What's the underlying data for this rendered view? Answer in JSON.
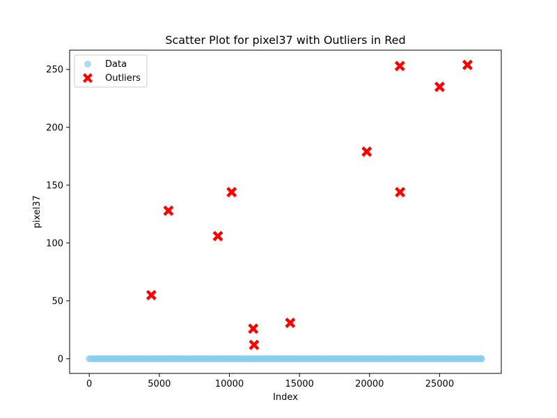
{
  "chart_data": {
    "type": "scatter",
    "title": "Scatter Plot for pixel37 with Outliers in Red",
    "xlabel": "Index",
    "ylabel": "pixel37",
    "xlim": [
      -1400,
      29400
    ],
    "ylim": [
      -12.7,
      266.7
    ],
    "xticks": [
      0,
      5000,
      10000,
      15000,
      20000,
      25000
    ],
    "yticks": [
      0,
      50,
      100,
      150,
      200,
      250
    ],
    "grid": false,
    "legend_position": "top-left",
    "series": [
      {
        "name": "Data",
        "color": "#87ceeb",
        "marker": "circle",
        "baseline": {
          "x_range": [
            0,
            27999
          ],
          "y": 0
        }
      },
      {
        "name": "Outliers",
        "color": "#ff0000",
        "marker": "X",
        "points": [
          {
            "x": 4430,
            "y": 55
          },
          {
            "x": 5650,
            "y": 128
          },
          {
            "x": 9180,
            "y": 106
          },
          {
            "x": 10160,
            "y": 144
          },
          {
            "x": 11700,
            "y": 26
          },
          {
            "x": 11760,
            "y": 12
          },
          {
            "x": 14340,
            "y": 31
          },
          {
            "x": 19800,
            "y": 179
          },
          {
            "x": 22160,
            "y": 253
          },
          {
            "x": 22180,
            "y": 144
          },
          {
            "x": 25000,
            "y": 235
          },
          {
            "x": 26990,
            "y": 254
          }
        ]
      }
    ]
  }
}
